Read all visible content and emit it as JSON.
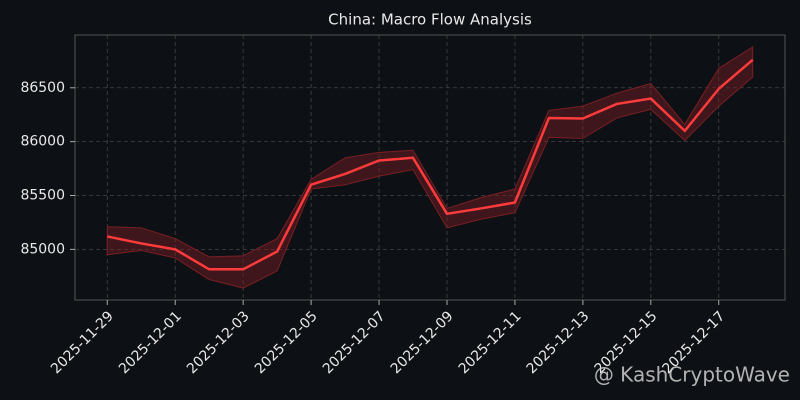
{
  "chart_data": {
    "type": "line",
    "title": "China: Macro Flow Analysis",
    "x": [
      "2025-11-29",
      "2025-11-30",
      "2025-12-01",
      "2025-12-02",
      "2025-12-03",
      "2025-12-04",
      "2025-12-05",
      "2025-12-06",
      "2025-12-07",
      "2025-12-08",
      "2025-12-09",
      "2025-12-10",
      "2025-12-11",
      "2025-12-12",
      "2025-12-13",
      "2025-12-14",
      "2025-12-15",
      "2025-12-16",
      "2025-12-17",
      "2025-12-18"
    ],
    "values": [
      85120,
      85055,
      85000,
      84815,
      84815,
      84980,
      85600,
      85700,
      85825,
      85850,
      85330,
      85380,
      85435,
      86220,
      86215,
      86350,
      86400,
      86100,
      86490,
      86760
    ],
    "color": "#ff3b3b",
    "band": {
      "color": "#7a1f24",
      "upper": [
        85210,
        85200,
        85100,
        84930,
        84940,
        85100,
        85650,
        85850,
        85900,
        85920,
        85380,
        85480,
        85560,
        86290,
        86330,
        86450,
        86540,
        86160,
        86680,
        86880
      ],
      "lower": [
        84950,
        84990,
        84920,
        84720,
        84640,
        84800,
        85560,
        85600,
        85680,
        85740,
        85200,
        85280,
        85340,
        86040,
        86030,
        86220,
        86300,
        86010,
        86330,
        86600
      ]
    },
    "xticks": [
      "2025-11-29",
      "2025-12-01",
      "2025-12-03",
      "2025-12-05",
      "2025-12-07",
      "2025-12-09",
      "2025-12-11",
      "2025-12-13",
      "2025-12-15",
      "2025-12-17"
    ],
    "ylim": [
      84530,
      86990
    ],
    "yticks": [
      85000,
      85500,
      86000,
      86500
    ],
    "grid": true,
    "watermark": "@ KashCryptoWave"
  }
}
